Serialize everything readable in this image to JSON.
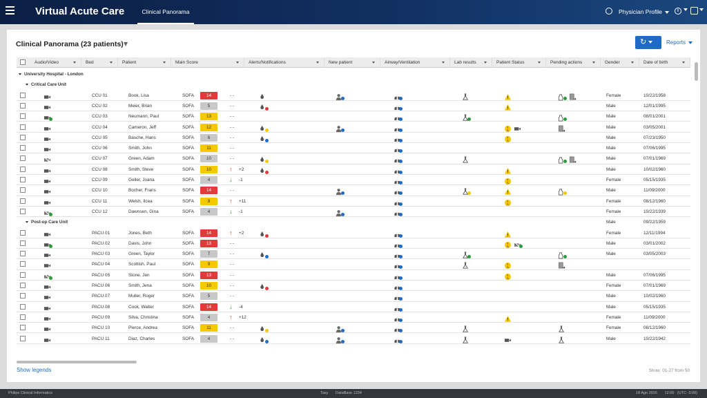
{
  "app_title": "Virtual Acute Care",
  "active_tab": "Clinical Panorama",
  "profile_label": "Physician Profile",
  "panel_title": "Clinical Panorama (23 patients)",
  "reports_label": "Reports",
  "show_legends": "Show legends",
  "paging": "Show: 01-27 from 50",
  "status": {
    "left": "Philips Clinical Informatics",
    "center": "Tasy       DataBase 1234",
    "right": "18 Ago 2016       12:00   (UTC -3:00)"
  },
  "colors": {
    "accent": "#1e6bc6",
    "red": "#e03b3b",
    "yellow": "#f6c800",
    "grey": "#c8c8c8",
    "arrow_up": "#e03b3b",
    "arrow_down": "#2a9a3b"
  },
  "columns": [
    "Audio/Video",
    "Bed",
    "Patient",
    "Main Score",
    "Alerts/Notifications",
    "New patient",
    "Airway/Ventilation",
    "Lab results",
    "Patient Status",
    "Pending actions",
    "Gender",
    "Date of birth"
  ],
  "hospital": "University Hospital - London",
  "units": [
    "Critical Care Unit",
    "Post-op Care Unit"
  ],
  "rows": [
    {
      "bed": "CCU 01",
      "patient": "Book, Lisa",
      "score_type": "SOFA",
      "score": "14",
      "level": "red",
      "trend": "none",
      "delta": "- -",
      "av": "video",
      "av_dot": "",
      "alert": "drops",
      "alert_dot": "",
      "newp": "person",
      "airway": "lungs",
      "lab": "flask",
      "lab_dot": "",
      "status": [
        "warn"
      ],
      "pending": [
        "bottle-green",
        "doc-arrow"
      ],
      "gender": "Female",
      "dob": "10/22/1958"
    },
    {
      "bed": "CCU 02",
      "patient": "Meier, Brian",
      "score_type": "SOFA",
      "score": "5",
      "level": "grey",
      "trend": "none",
      "delta": "- -",
      "av": "video",
      "av_dot": "",
      "alert": "drops",
      "alert_dot": "red",
      "newp": "",
      "airway": "lungs",
      "lab": "",
      "lab_dot": "",
      "status": [
        "warn"
      ],
      "pending": [],
      "gender": "Male",
      "dob": "12/01/1995"
    },
    {
      "bed": "CCU 03",
      "patient": "Neumann, Paul",
      "score_type": "SOFA",
      "score": "13",
      "level": "yellow",
      "trend": "none",
      "delta": "- -",
      "av": "video",
      "av_dot": "green",
      "alert": "",
      "alert_dot": "",
      "newp": "",
      "airway": "lungs",
      "lab": "flask",
      "lab_dot": "green",
      "status": [],
      "pending": [
        "bottle-green"
      ],
      "gender": "Male",
      "dob": "08/01/2001"
    },
    {
      "bed": "CCU 04",
      "patient": "Cameron, Jeff",
      "score_type": "SOFA",
      "score": "12",
      "level": "yellow",
      "trend": "none",
      "delta": "- -",
      "av": "video",
      "av_dot": "",
      "alert": "drops",
      "alert_dot": "yellow",
      "newp": "person",
      "airway": "lungs",
      "lab": "",
      "lab_dot": "",
      "status": [
        "alarm",
        "video"
      ],
      "pending": [
        "doc-arrow"
      ],
      "gender": "Male",
      "dob": "03/05/2001"
    },
    {
      "bed": "CCU 05",
      "patient": "Basche, Hans",
      "score_type": "SOFA",
      "score": "6",
      "level": "grey",
      "trend": "none",
      "delta": "- -",
      "av": "video",
      "av_dot": "",
      "alert": "drops",
      "alert_dot": "blue",
      "newp": "",
      "airway": "lungs",
      "lab": "",
      "lab_dot": "",
      "status": [
        "alarm"
      ],
      "pending": [],
      "gender": "Male",
      "dob": "07/23/1950"
    },
    {
      "bed": "CCU 06",
      "patient": "Smith, John",
      "score_type": "SOFA",
      "score": "11",
      "level": "yellow",
      "trend": "none",
      "delta": "- -",
      "av": "video",
      "av_dot": "",
      "alert": "",
      "alert_dot": "",
      "newp": "",
      "airway": "lungs",
      "lab": "",
      "lab_dot": "",
      "status": [],
      "pending": [],
      "gender": "Male",
      "dob": "07/06/1995"
    },
    {
      "bed": "CCU 07",
      "patient": "Green, Adam",
      "score_type": "SOFA",
      "score": "10",
      "level": "grey",
      "trend": "none",
      "delta": "- -",
      "av": "video-off",
      "av_dot": "",
      "alert": "drops",
      "alert_dot": "yellow",
      "newp": "",
      "airway": "lungs",
      "lab": "flask",
      "lab_dot": "",
      "status": [],
      "pending": [
        "bottle-green",
        "doc-arrow"
      ],
      "gender": "Male",
      "dob": "07/01/1969"
    },
    {
      "bed": "CCU 08",
      "patient": "Smith, Steve",
      "score_type": "SOFA",
      "score": "10",
      "level": "yellow",
      "trend": "up",
      "delta": "+2",
      "av": "video",
      "av_dot": "",
      "alert": "drops",
      "alert_dot": "red",
      "newp": "",
      "airway": "lungs",
      "lab": "",
      "lab_dot": "",
      "status": [
        "warn"
      ],
      "pending": [],
      "gender": "Male",
      "dob": "10/02/1960"
    },
    {
      "bed": "CCU 09",
      "patient": "Geller, Joana",
      "score_type": "SOFA",
      "score": "4",
      "level": "grey",
      "trend": "down",
      "delta": "-1",
      "av": "video",
      "av_dot": "",
      "alert": "",
      "alert_dot": "",
      "newp": "",
      "airway": "lungs",
      "lab": "",
      "lab_dot": "",
      "status": [
        "alarm"
      ],
      "pending": [],
      "gender": "Female",
      "dob": "05/15/1935"
    },
    {
      "bed": "CCU 10",
      "patient": "Bocher, Frans",
      "score_type": "SOFA",
      "score": "14",
      "level": "red",
      "trend": "none",
      "delta": "- -",
      "av": "video",
      "av_dot": "",
      "alert": "",
      "alert_dot": "",
      "newp": "person",
      "airway": "lungs",
      "lab": "flask",
      "lab_dot": "yellow",
      "status": [
        "warn"
      ],
      "pending": [
        "bottle-yellow"
      ],
      "gender": "Male",
      "dob": "11/09/2000"
    },
    {
      "bed": "CCU 11",
      "patient": "Welsh, Ilcea",
      "score_type": "SOFA",
      "score": "9",
      "level": "yellow",
      "trend": "up",
      "delta": "+11",
      "av": "video",
      "av_dot": "",
      "alert": "",
      "alert_dot": "",
      "newp": "",
      "airway": "lungs",
      "lab": "",
      "lab_dot": "",
      "status": [
        "alarm"
      ],
      "pending": [],
      "gender": "Female",
      "dob": "08/12/1960"
    },
    {
      "bed": "CCU 12",
      "patient": "Dawnsen, Gina",
      "score_type": "SOFA",
      "score": "4",
      "level": "grey",
      "trend": "down",
      "delta": "-1",
      "av": "video-off",
      "av_dot": "green",
      "alert": "",
      "alert_dot": "",
      "newp": "person",
      "airway": "lungs",
      "lab": "",
      "lab_dot": "",
      "status": [],
      "pending": [],
      "gender": "Female",
      "dob": "10/22/1939"
    },
    {
      "bed": "PACU 01",
      "patient": "Jones, Beth",
      "score_type": "SOFA",
      "score": "14",
      "level": "red",
      "trend": "up",
      "delta": "+2",
      "av": "video",
      "av_dot": "",
      "alert": "drops",
      "alert_dot": "red",
      "newp": "",
      "airway": "lungs",
      "lab": "",
      "lab_dot": "",
      "status": [
        "warn"
      ],
      "pending": [],
      "gender": "Female",
      "dob": "12/11/1994"
    },
    {
      "bed": "PACU 02",
      "patient": "Davis, John",
      "score_type": "SOFA",
      "score": "13",
      "level": "red",
      "trend": "none",
      "delta": "- -",
      "av": "video",
      "av_dot": "green",
      "alert": "",
      "alert_dot": "",
      "newp": "",
      "airway": "lungs",
      "lab": "",
      "lab_dot": "",
      "status": [
        "alarm",
        "video-off"
      ],
      "pending": [],
      "gender": "Male",
      "dob": "03/01/2002"
    },
    {
      "bed": "PACU 03",
      "patient": "Green, Taylor",
      "score_type": "SOFA",
      "score": "7",
      "level": "grey",
      "trend": "none",
      "delta": "- -",
      "av": "video",
      "av_dot": "",
      "alert": "drops",
      "alert_dot": "blue",
      "newp": "",
      "airway": "lungs",
      "lab": "flask",
      "lab_dot": "green",
      "status": [],
      "pending": [
        "bottle-green"
      ],
      "gender": "Male",
      "dob": "03/05/2003"
    },
    {
      "bed": "PACU 04",
      "patient": "Scottish, Paul",
      "score_type": "SOFA",
      "score": "9",
      "level": "yellow",
      "trend": "none",
      "delta": "- -",
      "av": "video",
      "av_dot": "",
      "alert": "",
      "alert_dot": "",
      "newp": "",
      "airway": "lungs",
      "lab": "flask",
      "lab_dot": "",
      "status": [
        "alarm"
      ],
      "pending": [
        "doc-arrow"
      ],
      "gender": "",
      "dob": ""
    },
    {
      "bed": "PACU 05",
      "patient": "Stone, Jen",
      "score_type": "SOFA",
      "score": "13",
      "level": "red",
      "trend": "none",
      "delta": "- -",
      "av": "video-off",
      "av_dot": "green",
      "alert": "",
      "alert_dot": "",
      "newp": "",
      "airway": "lungs",
      "lab": "",
      "lab_dot": "",
      "status": [
        "alarm"
      ],
      "pending": [],
      "gender": "Male",
      "dob": "07/06/1995"
    },
    {
      "bed": "PACU 06",
      "patient": "Smith, Jena",
      "score_type": "SOFA",
      "score": "10",
      "level": "yellow",
      "trend": "none",
      "delta": "- -",
      "av": "video",
      "av_dot": "",
      "alert": "drops",
      "alert_dot": "red",
      "newp": "",
      "airway": "lungs",
      "lab": "",
      "lab_dot": "",
      "status": [],
      "pending": [],
      "gender": "Female",
      "dob": "07/01/1969"
    },
    {
      "bed": "PACU 07",
      "patient": "Muller, Roger",
      "score_type": "SOFA",
      "score": "5",
      "level": "grey",
      "trend": "none",
      "delta": "- -",
      "av": "video",
      "av_dot": "",
      "alert": "",
      "alert_dot": "",
      "newp": "",
      "airway": "lungs",
      "lab": "",
      "lab_dot": "",
      "status": [],
      "pending": [],
      "gender": "Male",
      "dob": "10/02/1960"
    },
    {
      "bed": "PACU 08",
      "patient": "Cook, Walter",
      "score_type": "SOFA",
      "score": "14",
      "level": "red",
      "trend": "down",
      "delta": "-4",
      "av": "video",
      "av_dot": "",
      "alert": "",
      "alert_dot": "",
      "newp": "",
      "airway": "lungs",
      "lab": "",
      "lab_dot": "",
      "status": [],
      "pending": [],
      "gender": "Male",
      "dob": "05/15/1935"
    },
    {
      "bed": "PACU 09",
      "patient": "Silva, Christina",
      "score_type": "SOFA",
      "score": "4",
      "level": "grey",
      "trend": "up",
      "delta": "+12",
      "av": "video",
      "av_dot": "",
      "alert": "",
      "alert_dot": "",
      "newp": "",
      "airway": "lungs",
      "lab": "",
      "lab_dot": "",
      "status": [
        "warn"
      ],
      "pending": [],
      "gender": "Female",
      "dob": "11/09/2000"
    },
    {
      "bed": "PACU 10",
      "patient": "Pierce, Andrea",
      "score_type": "SOFA",
      "score": "11",
      "level": "yellow",
      "trend": "none",
      "delta": "- -",
      "av": "video",
      "av_dot": "",
      "alert": "drops",
      "alert_dot": "yellow",
      "newp": "person",
      "airway": "lungs",
      "lab": "flask",
      "lab_dot": "",
      "status": [],
      "pending": [
        "flask"
      ],
      "gender": "Female",
      "dob": "08/12/1960"
    },
    {
      "bed": "PACU 11",
      "patient": "Diaz, Charles",
      "score_type": "SOFA",
      "score": "4",
      "level": "grey",
      "trend": "none",
      "delta": "- -",
      "av": "video",
      "av_dot": "",
      "alert": "drops",
      "alert_dot": "blue",
      "newp": "person",
      "airway": "lungs",
      "lab": "flask",
      "lab_dot": "",
      "status": [
        "video"
      ],
      "pending": [
        "flask"
      ],
      "gender": "Male",
      "dob": "10/22/1942"
    }
  ],
  "extra_row": {
    "gender": "Male",
    "dob": "09/22/1959"
  }
}
